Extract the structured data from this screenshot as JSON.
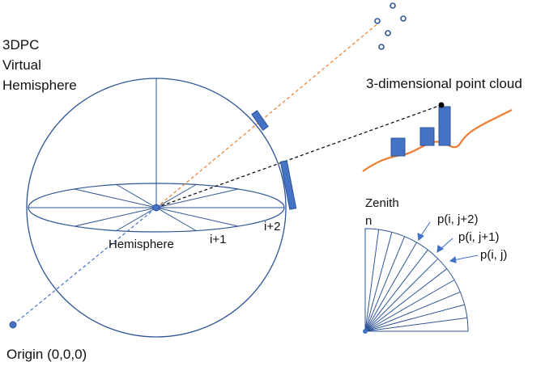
{
  "labels": {
    "title_line1": "3DPC",
    "title_line2": "Virtual",
    "title_line3": "Hemisphere",
    "point_cloud": "3-dimensional point cloud",
    "hemisphere": "Hemisphere",
    "i_plus_1": "i+1",
    "i_plus_2": "i+2",
    "zenith": "Zenith",
    "n": "n",
    "p_ij2": "p(i, j+2)",
    "p_ij1": "p(i, j+1)",
    "p_ij": "p(i, j)",
    "origin": "Origin (0,0,0)"
  },
  "colors": {
    "outline": "#2f5597",
    "bar_fill": "#4472c4",
    "terrain": "#ed7d31",
    "orange_ray": "#ed7d31",
    "black": "#000000"
  }
}
